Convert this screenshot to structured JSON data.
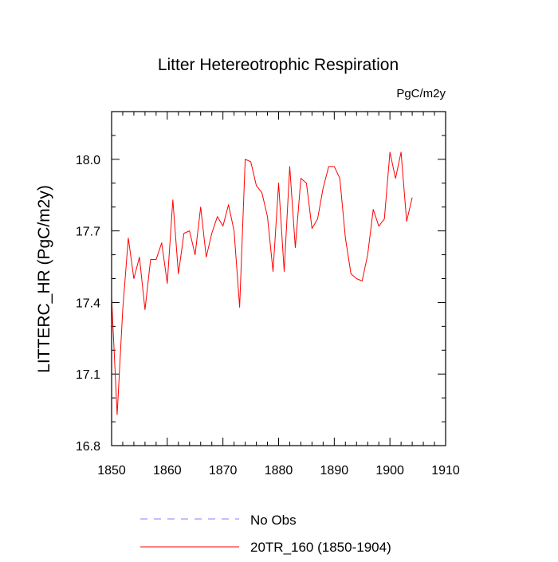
{
  "chart_data": {
    "type": "line",
    "title": "Litter Hetereotrophic Respiration",
    "units": "PgC/m2y",
    "ylabel": "LITTERC_HR  (PgC/m2y)",
    "xlabel": "",
    "xlim": [
      1850,
      1910
    ],
    "ylim": [
      16.8,
      18.2
    ],
    "xticks": [
      1850,
      1860,
      1870,
      1880,
      1890,
      1900,
      1910
    ],
    "yticks": [
      16.8,
      17.1,
      17.4,
      17.7,
      18.0
    ],
    "ytick_labels": [
      "16.8",
      "17.1",
      "17.4",
      "17.7",
      "18.0"
    ],
    "series": [
      {
        "name": "20TR_160 (1850-1904)",
        "color": "#ff0000",
        "style": "solid",
        "x": [
          1850,
          1851,
          1852,
          1853,
          1854,
          1855,
          1856,
          1857,
          1858,
          1859,
          1860,
          1861,
          1862,
          1863,
          1864,
          1865,
          1866,
          1867,
          1868,
          1869,
          1870,
          1871,
          1872,
          1873,
          1874,
          1875,
          1876,
          1877,
          1878,
          1879,
          1880,
          1881,
          1882,
          1883,
          1884,
          1885,
          1886,
          1887,
          1888,
          1889,
          1890,
          1891,
          1892,
          1893,
          1894,
          1895,
          1896,
          1897,
          1898,
          1899,
          1900,
          1901,
          1902,
          1903,
          1904
        ],
        "values": [
          17.42,
          16.93,
          17.37,
          17.67,
          17.5,
          17.59,
          17.37,
          17.58,
          17.58,
          17.65,
          17.48,
          17.83,
          17.52,
          17.69,
          17.7,
          17.6,
          17.8,
          17.59,
          17.69,
          17.76,
          17.72,
          17.81,
          17.7,
          17.38,
          18.0,
          17.99,
          17.89,
          17.86,
          17.76,
          17.53,
          17.9,
          17.53,
          17.97,
          17.63,
          17.92,
          17.9,
          17.71,
          17.75,
          17.88,
          17.97,
          17.97,
          17.92,
          17.67,
          17.52,
          17.5,
          17.49,
          17.6,
          17.79,
          17.72,
          17.75,
          18.03,
          17.92,
          18.03,
          17.74,
          17.84
        ]
      },
      {
        "name": "No Obs",
        "color": "#8080ff",
        "style": "dashed",
        "x": [],
        "values": []
      }
    ],
    "legend": {
      "position": "bottom",
      "entries": [
        "No Obs",
        "20TR_160 (1850-1904)"
      ]
    }
  }
}
